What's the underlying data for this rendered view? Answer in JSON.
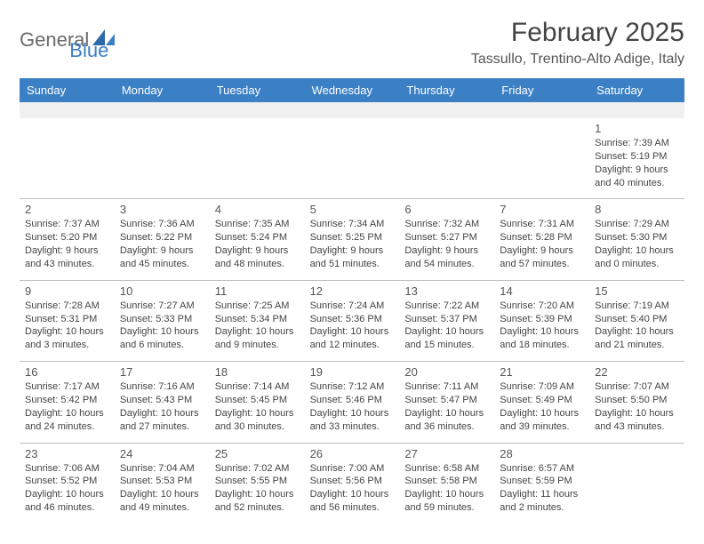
{
  "colors": {
    "accent": "#3b7fc4",
    "blank_bg": "#f0f0f0",
    "border": "#bfbfbf",
    "text": "#333333"
  },
  "logo": {
    "word1": "General",
    "word2": "Blue"
  },
  "title": "February 2025",
  "location": "Tassullo, Trentino-Alto Adige, Italy",
  "dow": [
    "Sunday",
    "Monday",
    "Tuesday",
    "Wednesday",
    "Thursday",
    "Friday",
    "Saturday"
  ],
  "weeks": [
    [
      null,
      null,
      null,
      null,
      null,
      null,
      {
        "n": "1",
        "sr": "7:39 AM",
        "ss": "5:19 PM",
        "dl": "9 hours and 40 minutes."
      }
    ],
    [
      {
        "n": "2",
        "sr": "7:37 AM",
        "ss": "5:20 PM",
        "dl": "9 hours and 43 minutes."
      },
      {
        "n": "3",
        "sr": "7:36 AM",
        "ss": "5:22 PM",
        "dl": "9 hours and 45 minutes."
      },
      {
        "n": "4",
        "sr": "7:35 AM",
        "ss": "5:24 PM",
        "dl": "9 hours and 48 minutes."
      },
      {
        "n": "5",
        "sr": "7:34 AM",
        "ss": "5:25 PM",
        "dl": "9 hours and 51 minutes."
      },
      {
        "n": "6",
        "sr": "7:32 AM",
        "ss": "5:27 PM",
        "dl": "9 hours and 54 minutes."
      },
      {
        "n": "7",
        "sr": "7:31 AM",
        "ss": "5:28 PM",
        "dl": "9 hours and 57 minutes."
      },
      {
        "n": "8",
        "sr": "7:29 AM",
        "ss": "5:30 PM",
        "dl": "10 hours and 0 minutes."
      }
    ],
    [
      {
        "n": "9",
        "sr": "7:28 AM",
        "ss": "5:31 PM",
        "dl": "10 hours and 3 minutes."
      },
      {
        "n": "10",
        "sr": "7:27 AM",
        "ss": "5:33 PM",
        "dl": "10 hours and 6 minutes."
      },
      {
        "n": "11",
        "sr": "7:25 AM",
        "ss": "5:34 PM",
        "dl": "10 hours and 9 minutes."
      },
      {
        "n": "12",
        "sr": "7:24 AM",
        "ss": "5:36 PM",
        "dl": "10 hours and 12 minutes."
      },
      {
        "n": "13",
        "sr": "7:22 AM",
        "ss": "5:37 PM",
        "dl": "10 hours and 15 minutes."
      },
      {
        "n": "14",
        "sr": "7:20 AM",
        "ss": "5:39 PM",
        "dl": "10 hours and 18 minutes."
      },
      {
        "n": "15",
        "sr": "7:19 AM",
        "ss": "5:40 PM",
        "dl": "10 hours and 21 minutes."
      }
    ],
    [
      {
        "n": "16",
        "sr": "7:17 AM",
        "ss": "5:42 PM",
        "dl": "10 hours and 24 minutes."
      },
      {
        "n": "17",
        "sr": "7:16 AM",
        "ss": "5:43 PM",
        "dl": "10 hours and 27 minutes."
      },
      {
        "n": "18",
        "sr": "7:14 AM",
        "ss": "5:45 PM",
        "dl": "10 hours and 30 minutes."
      },
      {
        "n": "19",
        "sr": "7:12 AM",
        "ss": "5:46 PM",
        "dl": "10 hours and 33 minutes."
      },
      {
        "n": "20",
        "sr": "7:11 AM",
        "ss": "5:47 PM",
        "dl": "10 hours and 36 minutes."
      },
      {
        "n": "21",
        "sr": "7:09 AM",
        "ss": "5:49 PM",
        "dl": "10 hours and 39 minutes."
      },
      {
        "n": "22",
        "sr": "7:07 AM",
        "ss": "5:50 PM",
        "dl": "10 hours and 43 minutes."
      }
    ],
    [
      {
        "n": "23",
        "sr": "7:06 AM",
        "ss": "5:52 PM",
        "dl": "10 hours and 46 minutes."
      },
      {
        "n": "24",
        "sr": "7:04 AM",
        "ss": "5:53 PM",
        "dl": "10 hours and 49 minutes."
      },
      {
        "n": "25",
        "sr": "7:02 AM",
        "ss": "5:55 PM",
        "dl": "10 hours and 52 minutes."
      },
      {
        "n": "26",
        "sr": "7:00 AM",
        "ss": "5:56 PM",
        "dl": "10 hours and 56 minutes."
      },
      {
        "n": "27",
        "sr": "6:58 AM",
        "ss": "5:58 PM",
        "dl": "10 hours and 59 minutes."
      },
      {
        "n": "28",
        "sr": "6:57 AM",
        "ss": "5:59 PM",
        "dl": "11 hours and 2 minutes."
      },
      null
    ]
  ],
  "labels": {
    "sunrise": "Sunrise:",
    "sunset": "Sunset:",
    "daylight": "Daylight:"
  }
}
